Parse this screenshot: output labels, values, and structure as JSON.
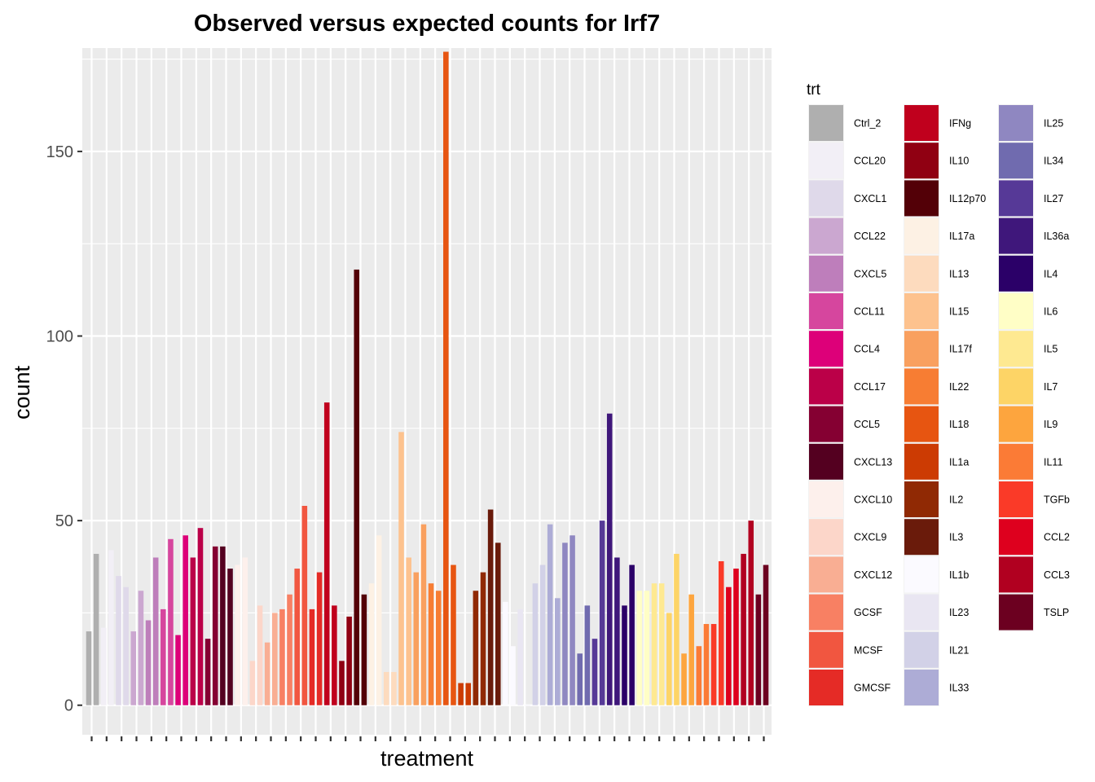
{
  "chart_data": {
    "type": "bar",
    "title": "Observed versus expected counts for Irf7",
    "xlabel": "treatment",
    "ylabel": "count",
    "ylim": [
      -8,
      178
    ],
    "yticks": [
      0,
      50,
      100,
      150
    ],
    "grid": true,
    "legend_title": "trt",
    "legend_position": "right",
    "n_x_ticks": 46,
    "series": [
      {
        "name": "Ctrl_2",
        "color": "#afafaf",
        "values": [
          20,
          41
        ]
      },
      {
        "name": "CCL20",
        "color": "#f2eff6",
        "values": [
          21,
          42
        ]
      },
      {
        "name": "CXCL1",
        "color": "#dfd9ea",
        "values": [
          35,
          32
        ]
      },
      {
        "name": "CCL22",
        "color": "#cba7d0",
        "values": [
          20,
          31
        ]
      },
      {
        "name": "CXCL5",
        "color": "#be7ebb",
        "values": [
          23,
          40
        ]
      },
      {
        "name": "CCL11",
        "color": "#d6469e",
        "values": [
          26,
          45
        ]
      },
      {
        "name": "CCL4",
        "color": "#dd0079",
        "values": [
          19,
          46
        ]
      },
      {
        "name": "CCL17",
        "color": "#bb0048",
        "values": [
          40,
          48
        ]
      },
      {
        "name": "CCL5",
        "color": "#850032",
        "values": [
          18,
          43
        ]
      },
      {
        "name": "CXCL13",
        "color": "#540020",
        "values": [
          43,
          37
        ]
      },
      {
        "name": "CXCL10",
        "color": "#fdf0ec",
        "values": [
          38,
          40
        ]
      },
      {
        "name": "CXCL9",
        "color": "#fcd6c9",
        "values": [
          12,
          27
        ]
      },
      {
        "name": "CXCL12",
        "color": "#f9ae93",
        "values": [
          17,
          25
        ]
      },
      {
        "name": "GCSF",
        "color": "#f88063",
        "values": [
          26,
          30
        ]
      },
      {
        "name": "MCSF",
        "color": "#f15640",
        "values": [
          37,
          54
        ]
      },
      {
        "name": "GMCSF",
        "color": "#e52b26",
        "values": [
          26,
          36
        ]
      },
      {
        "name": "IFNg",
        "color": "#c0001d",
        "values": [
          82,
          27
        ]
      },
      {
        "name": "IL10",
        "color": "#900012",
        "values": [
          12,
          24
        ]
      },
      {
        "name": "IL12p70",
        "color": "#530007",
        "values": [
          118,
          30
        ]
      },
      {
        "name": "IL17a",
        "color": "#fdf1e4",
        "values": [
          33,
          46
        ]
      },
      {
        "name": "IL13",
        "color": "#fddbbe",
        "values": [
          9,
          9
        ]
      },
      {
        "name": "IL15",
        "color": "#fdc28e",
        "values": [
          74,
          40
        ]
      },
      {
        "name": "IL17f",
        "color": "#f9a05f",
        "values": [
          36,
          49
        ]
      },
      {
        "name": "IL22",
        "color": "#f77d33",
        "values": [
          33,
          31
        ]
      },
      {
        "name": "IL18",
        "color": "#e75511",
        "values": [
          177,
          38
        ]
      },
      {
        "name": "IL1a",
        "color": "#cc3b03",
        "values": [
          6,
          6
        ]
      },
      {
        "name": "IL2",
        "color": "#902904",
        "values": [
          31,
          36
        ]
      },
      {
        "name": "IL3",
        "color": "#6a1b0b",
        "values": [
          53,
          44
        ]
      },
      {
        "name": "IL1b",
        "color": "#fbfaff",
        "values": [
          28,
          16
        ]
      },
      {
        "name": "IL23",
        "color": "#e9e6f2",
        "values": [
          26,
          0
        ]
      },
      {
        "name": "IL21",
        "color": "#d2d1e7",
        "values": [
          33,
          38
        ]
      },
      {
        "name": "IL33",
        "color": "#adacd6",
        "values": [
          49,
          29
        ]
      },
      {
        "name": "IL25",
        "color": "#8f87c1",
        "values": [
          44,
          46
        ]
      },
      {
        "name": "IL34",
        "color": "#706baf",
        "values": [
          14,
          27
        ]
      },
      {
        "name": "IL27",
        "color": "#563997",
        "values": [
          18,
          50
        ]
      },
      {
        "name": "IL36a",
        "color": "#3f177b",
        "values": [
          79,
          40
        ]
      },
      {
        "name": "IL4",
        "color": "#2b0068",
        "values": [
          27,
          38
        ]
      },
      {
        "name": "IL6",
        "color": "#fffec6",
        "values": [
          31,
          31
        ]
      },
      {
        "name": "IL5",
        "color": "#fee991",
        "values": [
          33,
          33
        ]
      },
      {
        "name": "IL7",
        "color": "#fdd466",
        "values": [
          25,
          41
        ]
      },
      {
        "name": "IL9",
        "color": "#fda53e",
        "values": [
          14,
          30
        ]
      },
      {
        "name": "IL11",
        "color": "#fb7b36",
        "values": [
          16,
          22
        ]
      },
      {
        "name": "TGFb",
        "color": "#fa3a28",
        "values": [
          22,
          39
        ]
      },
      {
        "name": "CCL2",
        "color": "#de001e",
        "values": [
          32,
          37
        ]
      },
      {
        "name": "CCL3",
        "color": "#b10020",
        "values": [
          41,
          50
        ]
      },
      {
        "name": "TSLP",
        "color": "#6c0020",
        "values": [
          30,
          38
        ]
      }
    ]
  }
}
